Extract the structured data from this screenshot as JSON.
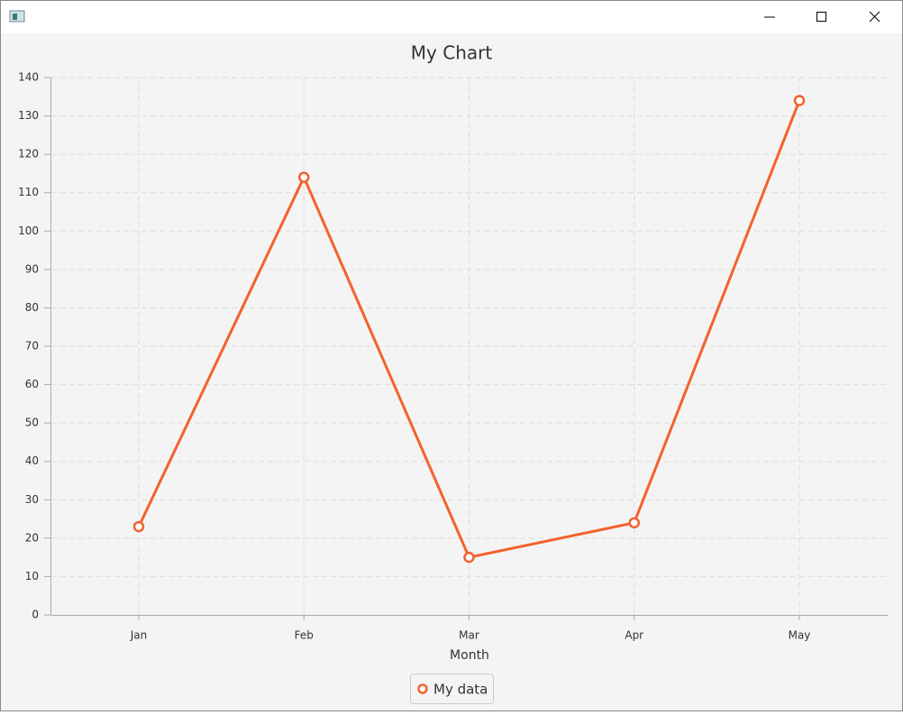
{
  "chart_data": {
    "type": "line",
    "title": "My Chart",
    "x_label": "Month",
    "categories": [
      "Jan",
      "Feb",
      "Mar",
      "Apr",
      "May"
    ],
    "series": [
      {
        "name": "My data",
        "color": "#f3622d",
        "values": [
          23,
          114,
          15,
          24,
          134
        ]
      }
    ],
    "ylim": [
      0,
      140
    ],
    "yticks": [
      0,
      10,
      20,
      30,
      40,
      50,
      60,
      70,
      80,
      90,
      100,
      110,
      120,
      130,
      140
    ],
    "grid": true,
    "legend": "bottom"
  }
}
